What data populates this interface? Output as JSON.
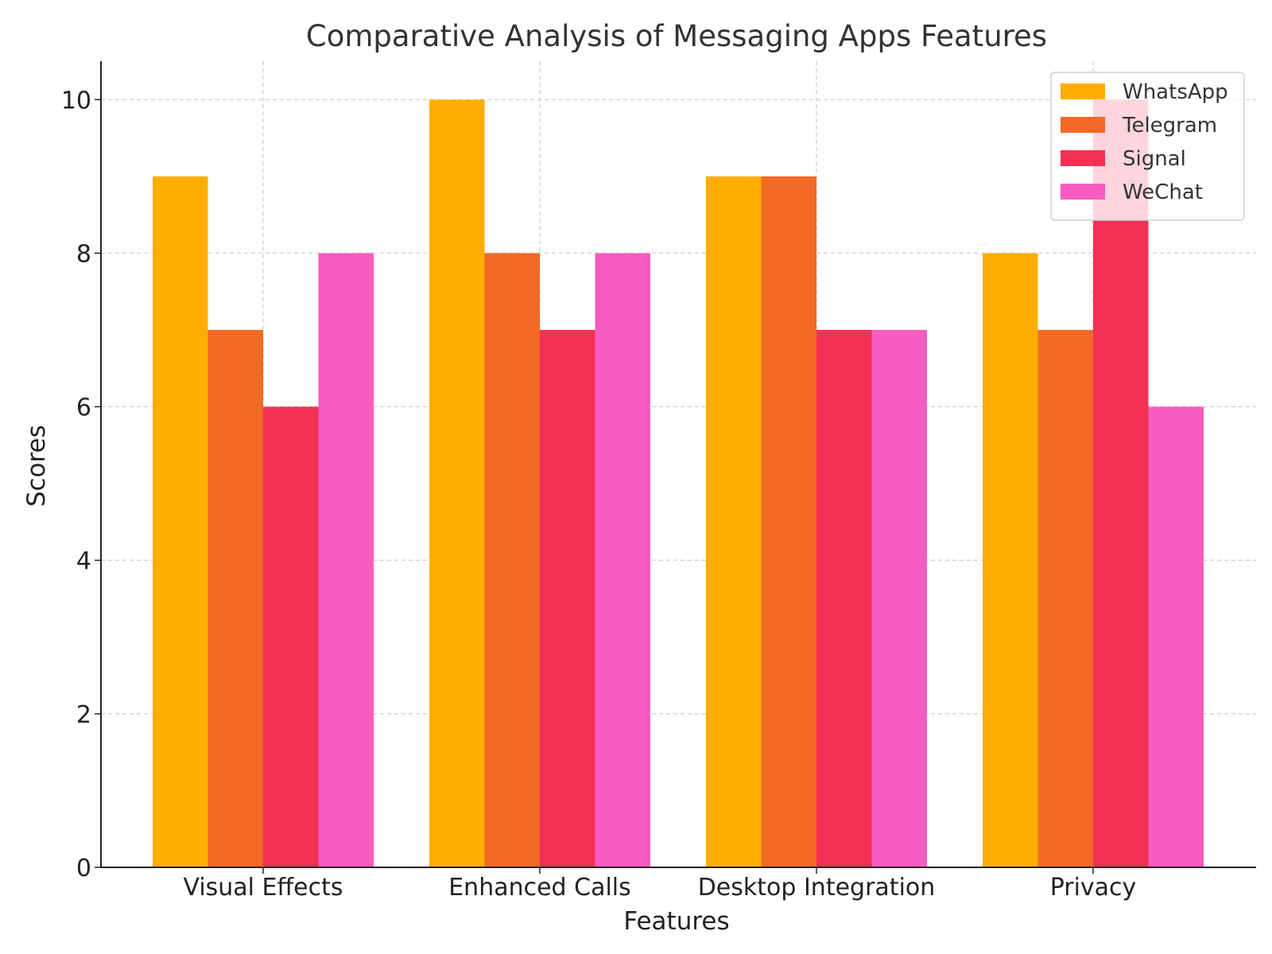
{
  "chart_data": {
    "type": "bar",
    "title": "Comparative Analysis of Messaging Apps Features",
    "xlabel": "Features",
    "ylabel": "Scores",
    "categories": [
      "Visual Effects",
      "Enhanced Calls",
      "Desktop Integration",
      "Privacy"
    ],
    "ylim": [
      0,
      10.5
    ],
    "yticks": [
      0,
      2,
      4,
      6,
      8,
      10
    ],
    "grid": true,
    "legend_position": "top-right",
    "series": [
      {
        "name": "WhatsApp",
        "color": "#FFAD00",
        "values": [
          9,
          10,
          9,
          8
        ]
      },
      {
        "name": "Telegram",
        "color": "#F26A24",
        "values": [
          7,
          8,
          9,
          7
        ]
      },
      {
        "name": "Signal",
        "color": "#F33153",
        "values": [
          6,
          7,
          7,
          10
        ]
      },
      {
        "name": "WeChat",
        "color": "#F85CC0",
        "values": [
          8,
          8,
          7,
          6
        ]
      }
    ]
  }
}
